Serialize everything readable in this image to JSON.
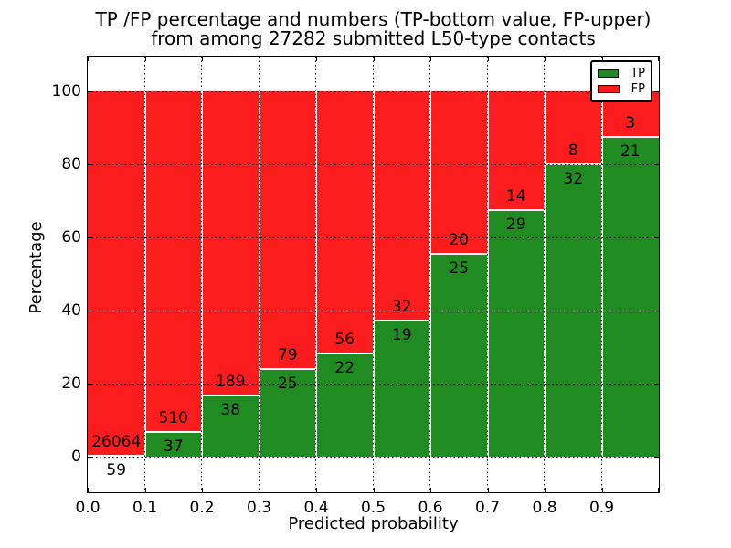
{
  "title": {
    "line1": "TP /FP percentage and numbers (TP-bottom value, FP-upper)",
    "line2": "from among 27282 submitted L50-type contacts"
  },
  "x_axis": {
    "label": "Predicted probability",
    "ticks": [
      "0.0",
      "0.1",
      "0.2",
      "0.3",
      "0.4",
      "0.5",
      "0.6",
      "0.7",
      "0.8",
      "0.9"
    ]
  },
  "y_axis": {
    "label": "Percentage",
    "ticks": [
      "0",
      "20",
      "40",
      "60",
      "80",
      "100"
    ]
  },
  "legend": {
    "items": [
      {
        "label": "TP",
        "color": "#208b20"
      },
      {
        "label": "FP",
        "color": "#fb1d1d"
      }
    ],
    "position": "upper right"
  },
  "colors": {
    "tp_green": "#208b20",
    "fp_red": "#fb1d1d",
    "grid": "#000000",
    "background": "#ffffff"
  },
  "chart_data": {
    "type": "bar",
    "stacked": true,
    "normalized_to_percent": 100,
    "title": "TP /FP percentage and numbers (TP-bottom value, FP-upper) from among 27282 submitted L50-type contacts",
    "xlabel": "Predicted probability",
    "ylabel": "Percentage",
    "total_contacts": 27282,
    "xlim": [
      0.0,
      1.0
    ],
    "ylim_visible": [
      0,
      100
    ],
    "grid": true,
    "bin_width": 0.1,
    "categories": [
      "0.0-0.1",
      "0.1-0.2",
      "0.2-0.3",
      "0.3-0.4",
      "0.4-0.5",
      "0.5-0.6",
      "0.6-0.7",
      "0.7-0.8",
      "0.8-0.9",
      "0.9-1.0"
    ],
    "series": [
      {
        "name": "TP",
        "counts": [
          59,
          37,
          38,
          25,
          22,
          19,
          25,
          29,
          32,
          21
        ]
      },
      {
        "name": "FP",
        "counts": [
          26064,
          510,
          189,
          79,
          56,
          32,
          20,
          14,
          8,
          3
        ]
      }
    ],
    "tp_percent": [
      0.23,
      6.76,
      16.74,
      24.04,
      28.21,
      37.25,
      55.56,
      67.44,
      80.0,
      87.5
    ]
  }
}
